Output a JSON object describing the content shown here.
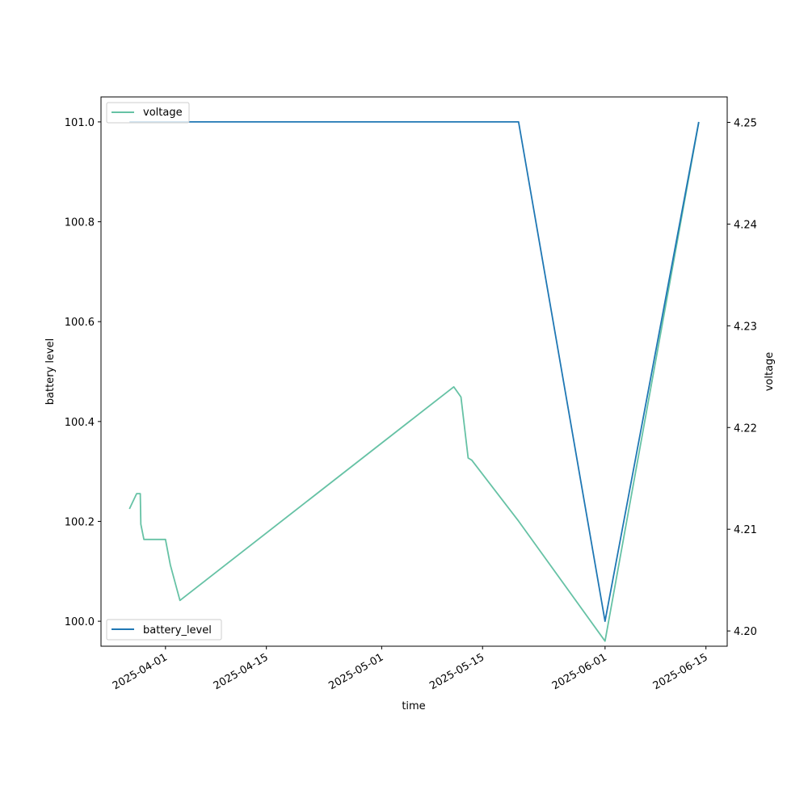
{
  "chart_data": {
    "type": "line",
    "xlabel": "time",
    "ylabel_left": "battery level",
    "ylabel_right": "voltage",
    "x_ticks": [
      "2025-04-01",
      "2025-04-15",
      "2025-05-01",
      "2025-05-15",
      "2025-06-01",
      "2025-06-15"
    ],
    "y_left_ticks": [
      "100.0",
      "100.2",
      "100.4",
      "100.6",
      "100.8",
      "101.0"
    ],
    "y_right_ticks": [
      "4.20",
      "4.21",
      "4.22",
      "4.23",
      "4.24",
      "4.25"
    ],
    "y_left_range": [
      99.95,
      101.05
    ],
    "y_right_range": [
      4.1985,
      4.2525
    ],
    "grid": false,
    "series": [
      {
        "name": "battery_level",
        "axis": "left",
        "color": "#1f77b4",
        "legend_position": "lower-left",
        "points": [
          [
            "2025-03-27",
            101.0
          ],
          [
            "2025-05-20",
            101.0
          ],
          [
            "2025-06-01",
            100.0
          ],
          [
            "2025-06-14",
            101.0
          ]
        ]
      },
      {
        "name": "voltage",
        "axis": "right",
        "color": "#66c2a5",
        "legend_position": "upper-left",
        "points": [
          [
            "2025-03-27",
            4.212
          ],
          [
            "2025-03-28",
            4.2135
          ],
          [
            "2025-03-28T12:00",
            4.2135
          ],
          [
            "2025-03-28T14:00",
            4.2105
          ],
          [
            "2025-03-29",
            4.209
          ],
          [
            "2025-04-01",
            4.209
          ],
          [
            "2025-04-01T16:00",
            4.2065
          ],
          [
            "2025-04-03",
            4.203
          ],
          [
            "2025-05-11",
            4.224
          ],
          [
            "2025-05-12",
            4.223
          ],
          [
            "2025-05-13",
            4.217
          ],
          [
            "2025-05-13T12:00",
            4.2168
          ],
          [
            "2025-05-20",
            4.2108
          ],
          [
            "2025-06-01",
            4.199
          ],
          [
            "2025-06-14",
            4.25
          ]
        ]
      }
    ]
  }
}
